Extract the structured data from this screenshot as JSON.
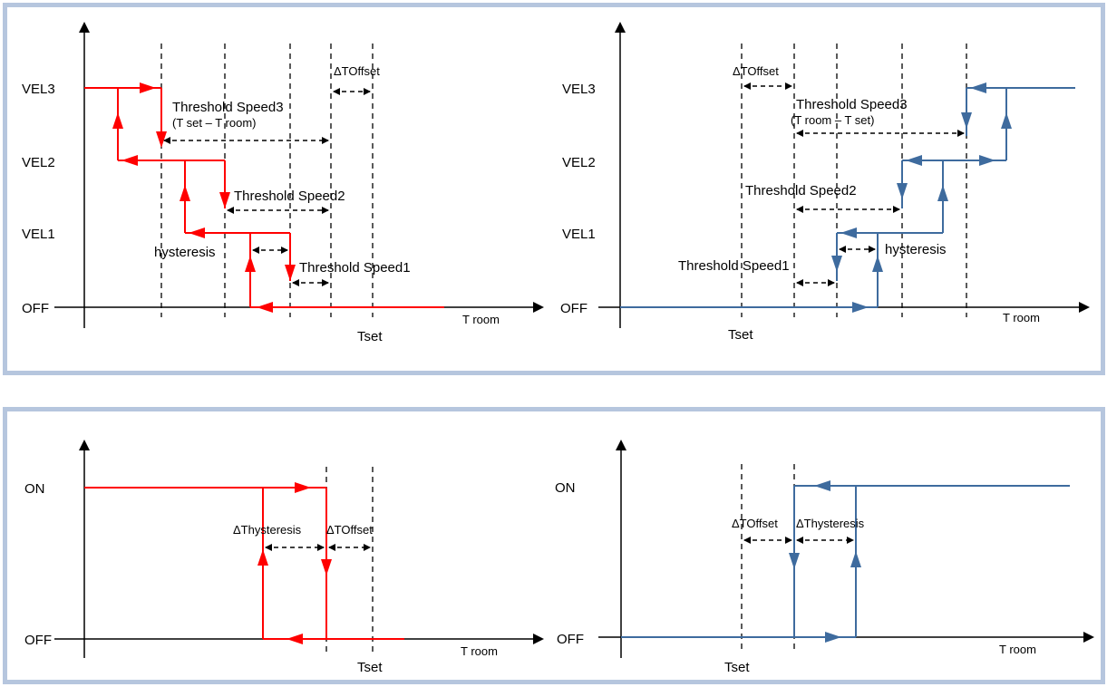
{
  "colors": {
    "red": "#ff0000",
    "blue": "#3e6b9e",
    "panel_border": "#b6c6de",
    "axis": "#000000"
  },
  "top_left": {
    "levels": {
      "vel3": "VEL3",
      "vel2": "VEL2",
      "vel1": "VEL1",
      "off": "OFF"
    },
    "x_axis": "T room",
    "tset": "Tset",
    "delta_toffset": "ΔTOffset",
    "threshold3": "Threshold Speed3",
    "threshold3_formula": "(T set – T room)",
    "threshold2": "Threshold Speed2",
    "threshold1": "Threshold Speed1",
    "hysteresis": "hysteresis"
  },
  "top_right": {
    "levels": {
      "vel3": "VEL3",
      "vel2": "VEL2",
      "vel1": "VEL1",
      "off": "OFF"
    },
    "x_axis": "T room",
    "tset": "Tset",
    "delta_toffset": "ΔTOffset",
    "threshold3": "Threshold Speed3",
    "threshold3_formula": "(T room – T set)",
    "threshold2": "Threshold Speed2",
    "threshold1": "Threshold Speed1",
    "hysteresis": "hysteresis"
  },
  "bottom_left": {
    "levels": {
      "on": "ON",
      "off": "OFF"
    },
    "x_axis": "T room",
    "tset": "Tset",
    "delta_thysteresis": "ΔThysteresis",
    "delta_toffset": "ΔTOffset"
  },
  "bottom_right": {
    "levels": {
      "on": "ON",
      "off": "OFF"
    },
    "x_axis": "T room",
    "tset": "Tset",
    "delta_thysteresis": "ΔThysteresis",
    "delta_toffset": "ΔTOffset"
  }
}
